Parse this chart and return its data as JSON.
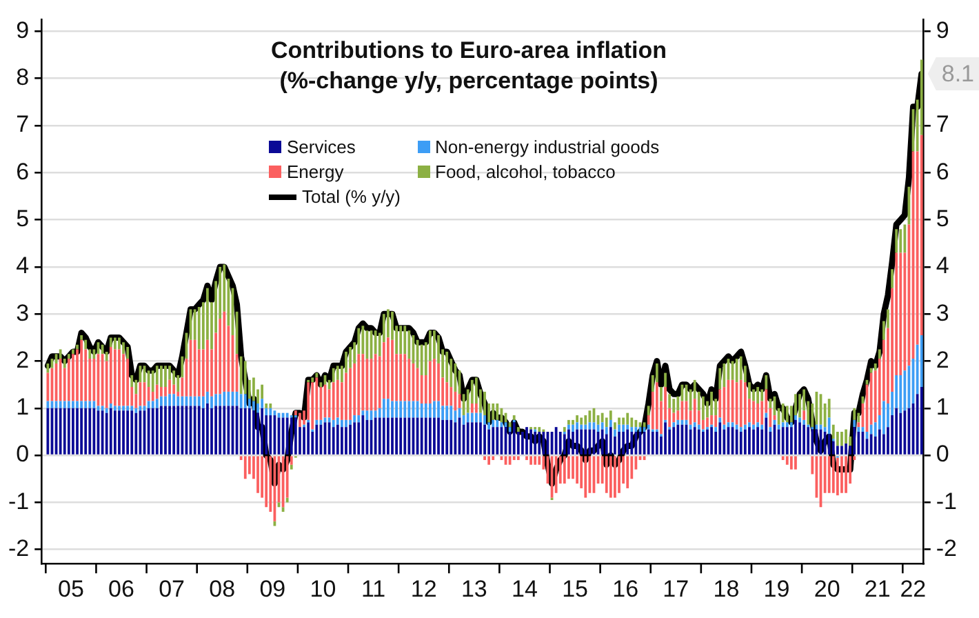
{
  "chart_data": {
    "type": "bar",
    "title": "Contributions to Euro-area inflation",
    "subtitle": "(%-change y/y, percentage points)",
    "x": [
      "2005-01",
      "2005-02",
      "2005-03",
      "2005-04",
      "2005-05",
      "2005-06",
      "2005-07",
      "2005-08",
      "2005-09",
      "2005-10",
      "2005-11",
      "2005-12",
      "2006-01",
      "2006-02",
      "2006-03",
      "2006-04",
      "2006-05",
      "2006-06",
      "2006-07",
      "2006-08",
      "2006-09",
      "2006-10",
      "2006-11",
      "2006-12",
      "2007-01",
      "2007-02",
      "2007-03",
      "2007-04",
      "2007-05",
      "2007-06",
      "2007-07",
      "2007-08",
      "2007-09",
      "2007-10",
      "2007-11",
      "2007-12",
      "2008-01",
      "2008-02",
      "2008-03",
      "2008-04",
      "2008-05",
      "2008-06",
      "2008-07",
      "2008-08",
      "2008-09",
      "2008-10",
      "2008-11",
      "2008-12",
      "2009-01",
      "2009-02",
      "2009-03",
      "2009-04",
      "2009-05",
      "2009-06",
      "2009-07",
      "2009-08",
      "2009-09",
      "2009-10",
      "2009-11",
      "2009-12",
      "2010-01",
      "2010-02",
      "2010-03",
      "2010-04",
      "2010-05",
      "2010-06",
      "2010-07",
      "2010-08",
      "2010-09",
      "2010-10",
      "2010-11",
      "2010-12",
      "2011-01",
      "2011-02",
      "2011-03",
      "2011-04",
      "2011-05",
      "2011-06",
      "2011-07",
      "2011-08",
      "2011-09",
      "2011-10",
      "2011-11",
      "2011-12",
      "2012-01",
      "2012-02",
      "2012-03",
      "2012-04",
      "2012-05",
      "2012-06",
      "2012-07",
      "2012-08",
      "2012-09",
      "2012-10",
      "2012-11",
      "2012-12",
      "2013-01",
      "2013-02",
      "2013-03",
      "2013-04",
      "2013-05",
      "2013-06",
      "2013-07",
      "2013-08",
      "2013-09",
      "2013-10",
      "2013-11",
      "2013-12",
      "2014-01",
      "2014-02",
      "2014-03",
      "2014-04",
      "2014-05",
      "2014-06",
      "2014-07",
      "2014-08",
      "2014-09",
      "2014-10",
      "2014-11",
      "2014-12",
      "2015-01",
      "2015-02",
      "2015-03",
      "2015-04",
      "2015-05",
      "2015-06",
      "2015-07",
      "2015-08",
      "2015-09",
      "2015-10",
      "2015-11",
      "2015-12",
      "2016-01",
      "2016-02",
      "2016-03",
      "2016-04",
      "2016-05",
      "2016-06",
      "2016-07",
      "2016-08",
      "2016-09",
      "2016-10",
      "2016-11",
      "2016-12",
      "2017-01",
      "2017-02",
      "2017-03",
      "2017-04",
      "2017-05",
      "2017-06",
      "2017-07",
      "2017-08",
      "2017-09",
      "2017-10",
      "2017-11",
      "2017-12",
      "2018-01",
      "2018-02",
      "2018-03",
      "2018-04",
      "2018-05",
      "2018-06",
      "2018-07",
      "2018-08",
      "2018-09",
      "2018-10",
      "2018-11",
      "2018-12",
      "2019-01",
      "2019-02",
      "2019-03",
      "2019-04",
      "2019-05",
      "2019-06",
      "2019-07",
      "2019-08",
      "2019-09",
      "2019-10",
      "2019-11",
      "2019-12",
      "2020-01",
      "2020-02",
      "2020-03",
      "2020-04",
      "2020-05",
      "2020-06",
      "2020-07",
      "2020-08",
      "2020-09",
      "2020-10",
      "2020-11",
      "2020-12",
      "2021-01",
      "2021-02",
      "2021-03",
      "2021-04",
      "2021-05",
      "2021-06",
      "2021-07",
      "2021-08",
      "2021-09",
      "2021-10",
      "2021-11",
      "2021-12",
      "2022-01",
      "2022-02",
      "2022-03",
      "2022-04",
      "2022-05"
    ],
    "series": [
      {
        "name": "Services",
        "color": "#0b0a96",
        "values": [
          1.0,
          1.0,
          1.0,
          1.0,
          1.0,
          1.0,
          1.0,
          1.0,
          1.0,
          1.0,
          1.0,
          1.0,
          0.95,
          0.95,
          0.9,
          1.0,
          0.95,
          0.95,
          0.95,
          0.95,
          0.95,
          0.9,
          0.95,
          0.95,
          1.0,
          1.0,
          1.0,
          1.05,
          1.05,
          1.05,
          1.05,
          1.05,
          1.05,
          1.05,
          1.05,
          1.05,
          1.05,
          1.0,
          1.1,
          1.0,
          1.05,
          1.05,
          1.05,
          1.05,
          1.05,
          1.05,
          1.0,
          1.0,
          1.0,
          0.95,
          0.9,
          1.0,
          0.85,
          0.85,
          0.85,
          0.8,
          0.8,
          0.8,
          0.8,
          0.8,
          0.6,
          0.6,
          0.7,
          0.5,
          0.65,
          0.65,
          0.7,
          0.7,
          0.6,
          0.65,
          0.6,
          0.6,
          0.65,
          0.7,
          0.7,
          0.85,
          0.75,
          0.75,
          0.8,
          0.8,
          0.8,
          0.8,
          0.8,
          0.8,
          0.8,
          0.8,
          0.8,
          0.8,
          0.8,
          0.8,
          0.8,
          0.8,
          0.8,
          0.8,
          0.75,
          0.75,
          0.75,
          0.7,
          0.8,
          0.65,
          0.7,
          0.7,
          0.7,
          0.7,
          0.65,
          0.55,
          0.6,
          0.6,
          0.6,
          0.6,
          0.5,
          0.7,
          0.5,
          0.5,
          0.6,
          0.55,
          0.5,
          0.5,
          0.5,
          0.5,
          0.5,
          0.6,
          0.5,
          0.45,
          0.55,
          0.5,
          0.55,
          0.55,
          0.55,
          0.55,
          0.55,
          0.5,
          0.55,
          0.45,
          0.6,
          0.4,
          0.5,
          0.5,
          0.55,
          0.5,
          0.5,
          0.5,
          0.5,
          0.55,
          0.5,
          0.5,
          0.4,
          0.7,
          0.55,
          0.6,
          0.65,
          0.65,
          0.65,
          0.55,
          0.6,
          0.55,
          0.5,
          0.55,
          0.6,
          0.5,
          0.7,
          0.55,
          0.6,
          0.6,
          0.55,
          0.5,
          0.55,
          0.6,
          0.55,
          0.6,
          0.55,
          0.8,
          0.5,
          0.65,
          0.55,
          0.6,
          0.6,
          0.6,
          0.75,
          0.7,
          0.65,
          0.6,
          0.55,
          0.55,
          0.55,
          0.5,
          0.45,
          0.3,
          0.2,
          0.2,
          0.25,
          0.2,
          0.6,
          0.5,
          0.5,
          0.35,
          0.45,
          0.4,
          0.55,
          0.45,
          0.6,
          0.85,
          1.0,
          0.9,
          0.95,
          1.0,
          1.1,
          1.3,
          1.45
        ]
      },
      {
        "name": "Non-energy industrial goods",
        "color": "#3d9df5",
        "values": [
          0.15,
          0.15,
          0.15,
          0.15,
          0.15,
          0.15,
          0.15,
          0.15,
          0.15,
          0.15,
          0.15,
          0.15,
          0.1,
          0.1,
          0.1,
          0.1,
          0.1,
          0.1,
          0.1,
          0.1,
          0.1,
          0.1,
          0.1,
          0.1,
          0.15,
          0.15,
          0.2,
          0.2,
          0.2,
          0.25,
          0.25,
          0.2,
          0.2,
          0.2,
          0.2,
          0.2,
          0.2,
          0.25,
          0.25,
          0.25,
          0.25,
          0.25,
          0.3,
          0.3,
          0.3,
          0.3,
          0.3,
          0.3,
          0.2,
          0.2,
          0.2,
          0.2,
          0.15,
          0.15,
          0.1,
          0.1,
          0.1,
          0.1,
          0.05,
          0.05,
          0,
          0.05,
          0.05,
          0.05,
          0.1,
          0.1,
          0.1,
          0.1,
          0.15,
          0.15,
          0.15,
          0.15,
          0.1,
          0.15,
          0.15,
          0.1,
          0.2,
          0.2,
          0.15,
          0.2,
          0.4,
          0.4,
          0.35,
          0.35,
          0.35,
          0.35,
          0.35,
          0.35,
          0.35,
          0.3,
          0.3,
          0.3,
          0.35,
          0.35,
          0.3,
          0.3,
          0.3,
          0.25,
          0.2,
          0.2,
          0.2,
          0.2,
          0.2,
          0.2,
          0.2,
          0.15,
          0.15,
          0.15,
          0.1,
          0.1,
          0.1,
          0.05,
          0,
          0,
          0,
          0,
          0.05,
          0,
          0,
          0,
          0,
          0,
          0,
          0.05,
          0.1,
          0.15,
          0.15,
          0.1,
          0.1,
          0.15,
          0.15,
          0.15,
          0.15,
          0.15,
          0.15,
          0.15,
          0.15,
          0.15,
          0.1,
          0.1,
          0.1,
          0.1,
          0.1,
          0.1,
          0.05,
          0.05,
          0.05,
          0.05,
          0.05,
          0.1,
          0.1,
          0.1,
          0.1,
          0.1,
          0.1,
          0.1,
          0.05,
          0.05,
          0.05,
          0.1,
          0.1,
          0.1,
          0.1,
          0.1,
          0.1,
          0.1,
          0.1,
          0.1,
          0.1,
          0.1,
          0.1,
          0.1,
          0.1,
          0.1,
          0.1,
          0.1,
          0.1,
          0.1,
          0.1,
          0.1,
          0.1,
          0.05,
          0.05,
          0.1,
          0.1,
          0.1,
          0.35,
          0.05,
          -0.05,
          0,
          0,
          0,
          0.15,
          0.1,
          0.1,
          0.15,
          0.2,
          0.3,
          0.3,
          0.7,
          0.5,
          0.5,
          0.7,
          0.8,
          0.85,
          0.9,
          0.95,
          1.05,
          1.1
        ]
      },
      {
        "name": "Energy",
        "color": "#fb5f5f",
        "values": [
          0.6,
          0.7,
          0.8,
          0.9,
          0.7,
          0.9,
          1.0,
          1.1,
          1.3,
          1.1,
          0.9,
          0.9,
          1.1,
          1.1,
          1.0,
          1.2,
          1.2,
          1.2,
          1.1,
          1.0,
          0.4,
          0.3,
          0.5,
          0.5,
          0.3,
          0.2,
          0.3,
          0.2,
          0.2,
          0.3,
          0.2,
          0.1,
          0.4,
          0.8,
          1.2,
          1.2,
          1.0,
          1.0,
          1.1,
          1.0,
          1.3,
          1.6,
          1.7,
          1.4,
          1.2,
          0.8,
          -0.1,
          -0.5,
          -0.4,
          -0.5,
          -0.8,
          -0.9,
          -1.1,
          -1.2,
          -1.4,
          -1.0,
          -1.1,
          -0.9,
          -0.2,
          0.1,
          0.3,
          0.3,
          0.8,
          1.0,
          0.9,
          0.7,
          0.7,
          0.6,
          0.8,
          0.8,
          0.8,
          1.0,
          1.1,
          1.1,
          1.3,
          1.2,
          1.1,
          1.1,
          1.2,
          1.1,
          1.2,
          1.3,
          1.3,
          1.0,
          1.0,
          1.0,
          0.9,
          0.8,
          0.7,
          0.6,
          0.6,
          0.9,
          0.9,
          0.8,
          0.6,
          0.5,
          0.4,
          0.4,
          0.3,
          0,
          0,
          0.2,
          0.2,
          0,
          -0.1,
          -0.2,
          -0.1,
          0,
          -0.1,
          -0.2,
          -0.2,
          -0.1,
          -0.1,
          0,
          -0.1,
          -0.2,
          -0.2,
          -0.2,
          -0.3,
          -0.6,
          -0.9,
          -0.8,
          -0.6,
          -0.6,
          -0.5,
          -0.5,
          -0.6,
          -0.7,
          -0.9,
          -0.8,
          -0.8,
          -0.6,
          -0.6,
          -0.8,
          -0.9,
          -0.9,
          -0.8,
          -0.6,
          -0.7,
          -0.5,
          -0.3,
          -0.1,
          -0.1,
          0.2,
          0.8,
          1.0,
          0.7,
          0.7,
          0.4,
          0.2,
          0.2,
          0.4,
          0.4,
          0.3,
          0.5,
          0.3,
          0.2,
          0.2,
          0.2,
          0.25,
          0.6,
          0.8,
          0.9,
          0.9,
          0.9,
          1.0,
          0.9,
          0.5,
          0.5,
          0.4,
          0.5,
          0.5,
          0.4,
          0.1,
          0,
          -0.1,
          -0.2,
          -0.3,
          -0.3,
          0,
          0.2,
          0,
          -0.4,
          -0.9,
          -1.1,
          -0.8,
          -0.8,
          -0.8,
          -0.8,
          -0.8,
          -0.8,
          -0.6,
          -0.1,
          0.1,
          0.5,
          1.0,
          1.1,
          1.1,
          1.2,
          1.3,
          1.6,
          2.2,
          2.6,
          2.6,
          2.5,
          3.0,
          4.4,
          4.1,
          4.25
        ]
      },
      {
        "name": "Food, alcohol, tobacco",
        "color": "#8cb043",
        "values": [
          0.2,
          0.2,
          0.2,
          0.2,
          0.2,
          0.1,
          0.1,
          0.1,
          0.1,
          0.2,
          0.2,
          0.2,
          0.25,
          0.2,
          0.2,
          0.2,
          0.25,
          0.25,
          0.25,
          0.25,
          0.25,
          0.3,
          0.35,
          0.35,
          0.35,
          0.45,
          0.4,
          0.45,
          0.45,
          0.3,
          0.3,
          0.35,
          0.45,
          0.55,
          0.65,
          0.65,
          0.9,
          1.0,
          1.1,
          1.0,
          1.1,
          1.1,
          1.0,
          1.0,
          1.0,
          0.9,
          0.8,
          0.7,
          0.4,
          0.5,
          0.3,
          0.3,
          0.1,
          0.1,
          -0.1,
          -0.1,
          -0.1,
          -0.1,
          -0.1,
          -0.05,
          0,
          0,
          0.05,
          0.1,
          0.1,
          0.1,
          0.2,
          0.2,
          0.3,
          0.3,
          0.35,
          0.45,
          0.45,
          0.45,
          0.55,
          0.6,
          0.6,
          0.6,
          0.5,
          0.5,
          0.6,
          0.6,
          0.6,
          0.6,
          0.6,
          0.6,
          0.6,
          0.6,
          0.6,
          0.65,
          0.7,
          0.65,
          0.6,
          0.6,
          0.6,
          0.65,
          0.6,
          0.6,
          0.5,
          0.45,
          0.5,
          0.5,
          0.55,
          0.5,
          0.5,
          0.4,
          0.35,
          0.35,
          0.3,
          0.2,
          0.1,
          0.1,
          0.1,
          0,
          0,
          0.05,
          0.05,
          0.1,
          0.05,
          0,
          -0.05,
          0,
          0,
          0.1,
          0.1,
          0.1,
          0.15,
          0.15,
          0.2,
          0.25,
          0.3,
          0.2,
          0.2,
          0.2,
          0.2,
          0.15,
          0.15,
          0.15,
          0.25,
          0.2,
          0.15,
          0.1,
          0.1,
          0.2,
          0.35,
          0.4,
          0.3,
          0.3,
          0.3,
          0.3,
          0.3,
          0.35,
          0.35,
          0.45,
          0.4,
          0.4,
          0.5,
          0.35,
          0.5,
          0.35,
          0.45,
          0.5,
          0.45,
          0.4,
          0.5,
          0.5,
          0.35,
          0.35,
          0.25,
          0.35,
          0.25,
          0.3,
          0.2,
          0.4,
          0.35,
          0.4,
          0.35,
          0.35,
          0.45,
          0.5,
          0.45,
          0.5,
          0.5,
          0.7,
          0.65,
          0.5,
          0.4,
          0.3,
          0.3,
          0.3,
          0.3,
          0.2,
          0.25,
          0.2,
          0.15,
          0.1,
          0.1,
          0.15,
          0.2,
          0.4,
          0.4,
          0.4,
          0.5,
          0.5,
          0.6,
          0.8,
          0.9,
          1.1,
          1.6
        ]
      },
      {
        "name": "Total (% y/y)",
        "type": "line",
        "color": "#000000",
        "values": [
          1.9,
          2.1,
          2.1,
          2.1,
          2.0,
          2.1,
          2.2,
          2.2,
          2.6,
          2.5,
          2.3,
          2.2,
          2.4,
          2.3,
          2.2,
          2.5,
          2.5,
          2.5,
          2.4,
          2.3,
          1.7,
          1.6,
          1.9,
          1.9,
          1.8,
          1.8,
          1.9,
          1.9,
          1.9,
          1.9,
          1.8,
          1.7,
          2.1,
          2.6,
          3.1,
          3.1,
          3.2,
          3.3,
          3.6,
          3.3,
          3.7,
          4.0,
          4.0,
          3.8,
          3.6,
          3.2,
          2.1,
          1.6,
          1.1,
          1.2,
          0.6,
          0.6,
          0.0,
          -0.1,
          -0.6,
          -0.2,
          -0.3,
          -0.1,
          0.5,
          0.9,
          0.9,
          0.8,
          1.6,
          1.6,
          1.7,
          1.5,
          1.7,
          1.6,
          1.9,
          1.9,
          1.9,
          2.2,
          2.3,
          2.4,
          2.7,
          2.8,
          2.7,
          2.7,
          2.6,
          2.6,
          3.0,
          3.0,
          3.0,
          2.7,
          2.7,
          2.7,
          2.7,
          2.6,
          2.4,
          2.4,
          2.4,
          2.6,
          2.6,
          2.5,
          2.2,
          2.2,
          2.0,
          1.8,
          1.7,
          1.2,
          1.4,
          1.6,
          1.6,
          1.3,
          1.1,
          0.7,
          0.9,
          0.8,
          0.8,
          0.7,
          0.5,
          0.7,
          0.5,
          0.5,
          0.4,
          0.4,
          0.3,
          0.4,
          0.3,
          -0.2,
          -0.6,
          -0.3,
          -0.1,
          0.0,
          0.3,
          0.2,
          0.2,
          0.1,
          -0.1,
          0.1,
          0.1,
          0.2,
          0.3,
          -0.2,
          0.0,
          -0.2,
          -0.1,
          0.1,
          0.2,
          0.2,
          0.4,
          0.5,
          0.6,
          1.1,
          1.7,
          2.0,
          1.5,
          1.9,
          1.4,
          1.3,
          1.3,
          1.5,
          1.5,
          1.4,
          1.5,
          1.4,
          1.3,
          1.1,
          1.4,
          1.2,
          1.9,
          2.0,
          2.1,
          2.0,
          2.1,
          2.2,
          1.9,
          1.5,
          1.4,
          1.5,
          1.4,
          1.7,
          1.2,
          1.3,
          1.0,
          1.0,
          0.8,
          0.7,
          1.0,
          1.3,
          1.4,
          1.2,
          0.7,
          0.3,
          0.1,
          0.3,
          0.4,
          -0.2,
          -0.3,
          -0.3,
          -0.3,
          -0.3,
          0.9,
          0.9,
          1.3,
          1.6,
          2.0,
          1.9,
          2.2,
          3.0,
          3.4,
          4.1,
          4.9,
          5.0,
          5.1,
          5.9,
          7.4,
          7.4,
          8.1
        ]
      }
    ],
    "stacked": true,
    "marker": "none",
    "line_style": "solid",
    "grid": "y",
    "legend": "top",
    "xlim": [
      "2004-12-01",
      "2022-06-01"
    ],
    "xticks": [
      {
        "value": "2005",
        "label": null
      },
      {
        "value": "2005-07-01",
        "label": "05"
      },
      {
        "value": "2006",
        "label": null
      },
      {
        "value": "2006-07-01",
        "label": "06"
      },
      {
        "value": "2007",
        "label": null
      },
      {
        "value": "2007-07-01",
        "label": "07"
      },
      {
        "value": "2008",
        "label": null
      },
      {
        "value": "2008-07-01",
        "label": "08"
      },
      {
        "value": "2009",
        "label": null
      },
      {
        "value": "2009-07-01",
        "label": "09"
      },
      {
        "value": "2010",
        "label": null
      },
      {
        "value": "2010-07-01",
        "label": "10"
      },
      {
        "value": "2011",
        "label": null
      },
      {
        "value": "2011-07-01",
        "label": "11"
      },
      {
        "value": "2012",
        "label": null
      },
      {
        "value": "2012-07-01",
        "label": "12"
      },
      {
        "value": "2013",
        "label": null
      },
      {
        "value": "2013-07-01",
        "label": "13"
      },
      {
        "value": "2014",
        "label": null
      },
      {
        "value": "2014-07-01",
        "label": "14"
      },
      {
        "value": "2015",
        "label": null
      },
      {
        "value": "2015-07-01",
        "label": "15"
      },
      {
        "value": "2016",
        "label": null
      },
      {
        "value": "2016-07-01",
        "label": "16"
      },
      {
        "value": "2017",
        "label": null
      },
      {
        "value": "2017-07-01",
        "label": "17"
      },
      {
        "value": "2018",
        "label": null
      },
      {
        "value": "2018-07-01",
        "label": "18"
      },
      {
        "value": "2019",
        "label": null
      },
      {
        "value": "2019-07-01",
        "label": "19"
      },
      {
        "value": "2020",
        "label": null
      },
      {
        "value": "2020-07-01",
        "label": "20"
      },
      {
        "value": "2021",
        "label": null
      },
      {
        "value": "2021-07-01",
        "label": "21"
      },
      {
        "value": "2022",
        "label": null
      },
      {
        "value": "2022-03-15",
        "label": "22"
      }
    ],
    "ylim": [
      -2.3,
      9.25
    ],
    "yticks": [
      -2,
      -1,
      0,
      1,
      2,
      3,
      4,
      5,
      6,
      7,
      8,
      9
    ],
    "y2lim": [
      -2.3,
      9.25
    ],
    "y2ticks": [
      -2,
      -1,
      0,
      1,
      2,
      3,
      4,
      5,
      6,
      7,
      9
    ],
    "annotations": [
      {
        "text": "8.1",
        "x": "2022-05",
        "y": 8.1
      }
    ]
  }
}
